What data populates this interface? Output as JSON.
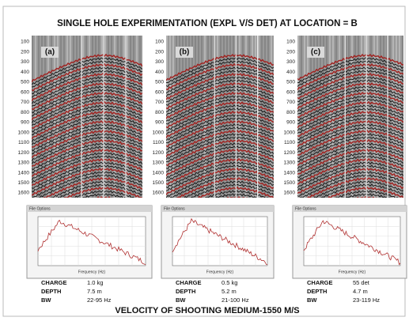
{
  "title": "SINGLE HOLE EXPERIMENTATION (EXPL V/S DET) AT LOCATION = B",
  "depth_labels": [
    "100",
    "200",
    "300",
    "400",
    "500",
    "600",
    "700",
    "800",
    "900",
    "1000",
    "1100",
    "1200",
    "1300",
    "1400",
    "1500",
    "1600"
  ],
  "panels": [
    {
      "label": "(a)",
      "window_title": "File Options",
      "x_axis_label": "Frequency (Hz)",
      "params": [
        [
          "CHARGE",
          "1.0 kg"
        ],
        [
          "DEPTH",
          "7.5 m"
        ],
        [
          "BW",
          "22-95 Hz"
        ]
      ]
    },
    {
      "label": "(b)",
      "window_title": "File Options",
      "x_axis_label": "Frequency (Hz)",
      "params": [
        [
          "CHARGE",
          "0.5 kg"
        ],
        [
          "DEPTH",
          "5.2 m"
        ],
        [
          "BW",
          "21-100 Hz"
        ]
      ]
    },
    {
      "label": "(c)",
      "window_title": "File Options",
      "x_axis_label": "Frequency (Hz)",
      "params": [
        [
          "CHARGE",
          "55 det"
        ],
        [
          "DEPTH",
          "4.7 m"
        ],
        [
          "BW",
          "23-119 Hz"
        ]
      ]
    }
  ],
  "footer": "VELOCITY OF SHOOTING MEDIUM-1550 M/S"
}
